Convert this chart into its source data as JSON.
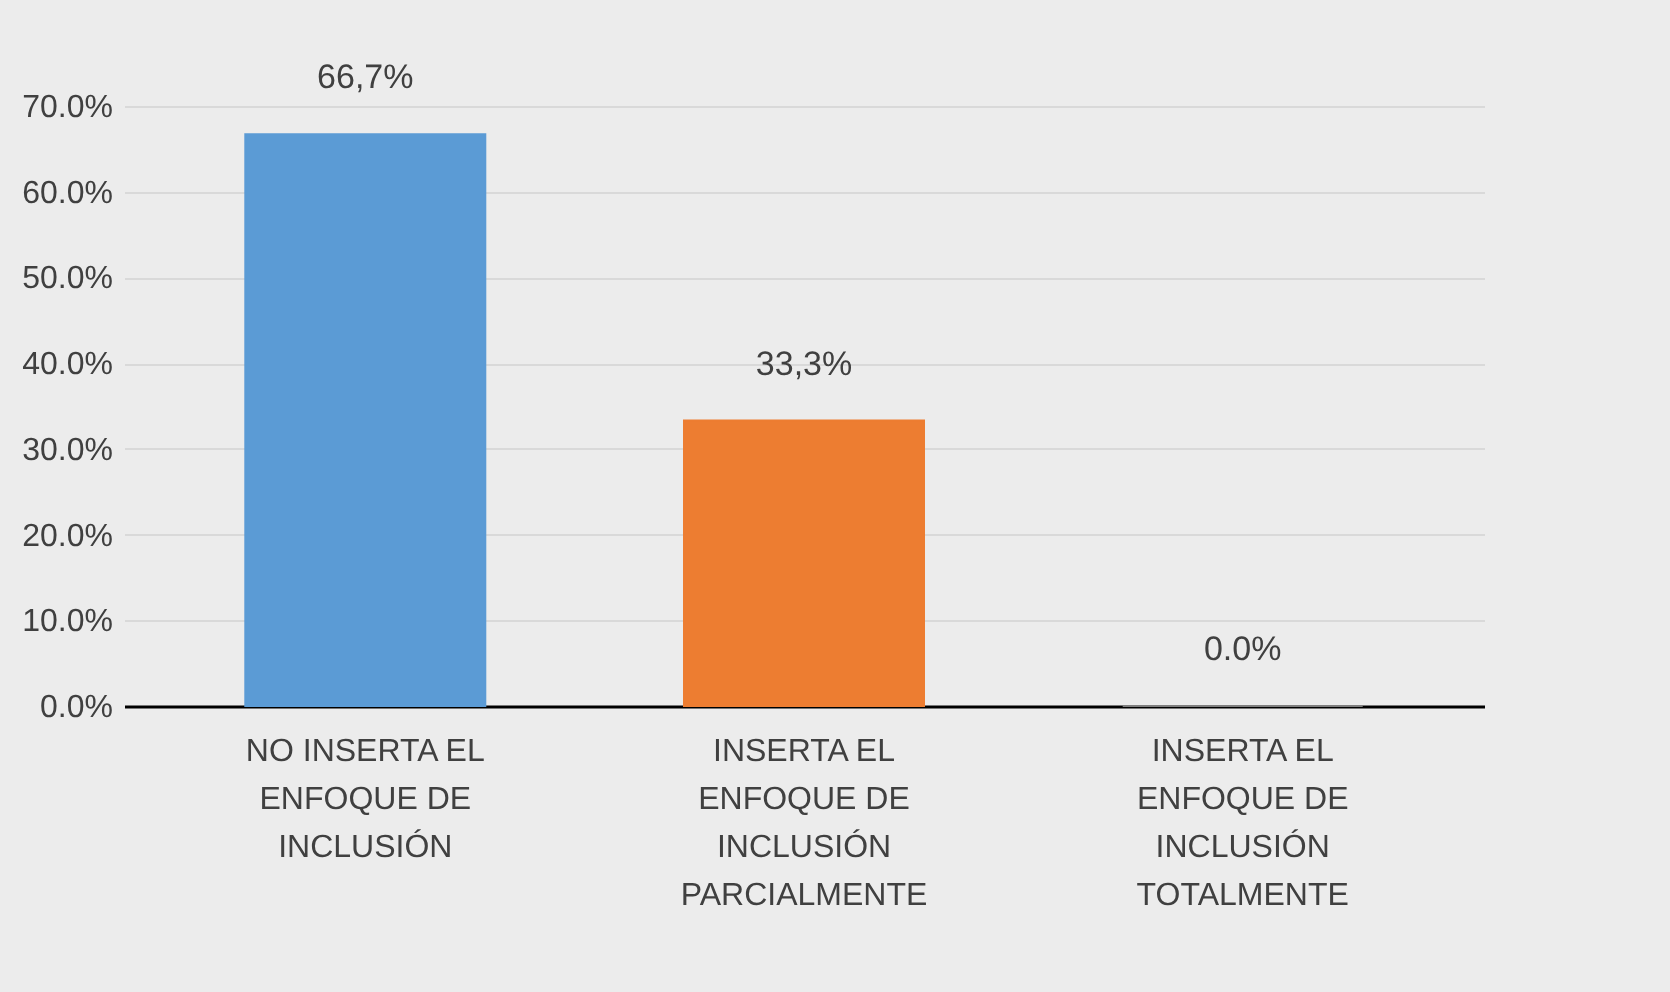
{
  "chart_data": {
    "type": "bar",
    "categories": [
      "NO INSERTA EL ENFOQUE DE INCLUSIÓN",
      "INSERTA EL ENFOQUE DE INCLUSIÓN PARCIALMENTE",
      "INSERTA EL ENFOQUE DE INCLUSIÓN TOTALMENTE"
    ],
    "values": [
      66.7,
      33.3,
      0.0
    ],
    "colors": [
      "#5b9bd5",
      "#ed7d31",
      "#7f7f7f"
    ],
    "value_labels": [
      "66,7%",
      "33,3%",
      "0.0%"
    ],
    "ylim": [
      0,
      70
    ],
    "yticks": [
      {
        "value": 0,
        "label": "0.0%"
      },
      {
        "value": 10,
        "label": "10.0%"
      },
      {
        "value": 20,
        "label": "20.0%"
      },
      {
        "value": 30,
        "label": "30.0%"
      },
      {
        "value": 40,
        "label": "40.0%"
      },
      {
        "value": 50,
        "label": "50.0%"
      },
      {
        "value": 60,
        "label": "60.0%"
      },
      {
        "value": 70,
        "label": "70.0%"
      }
    ],
    "grid": "y"
  }
}
